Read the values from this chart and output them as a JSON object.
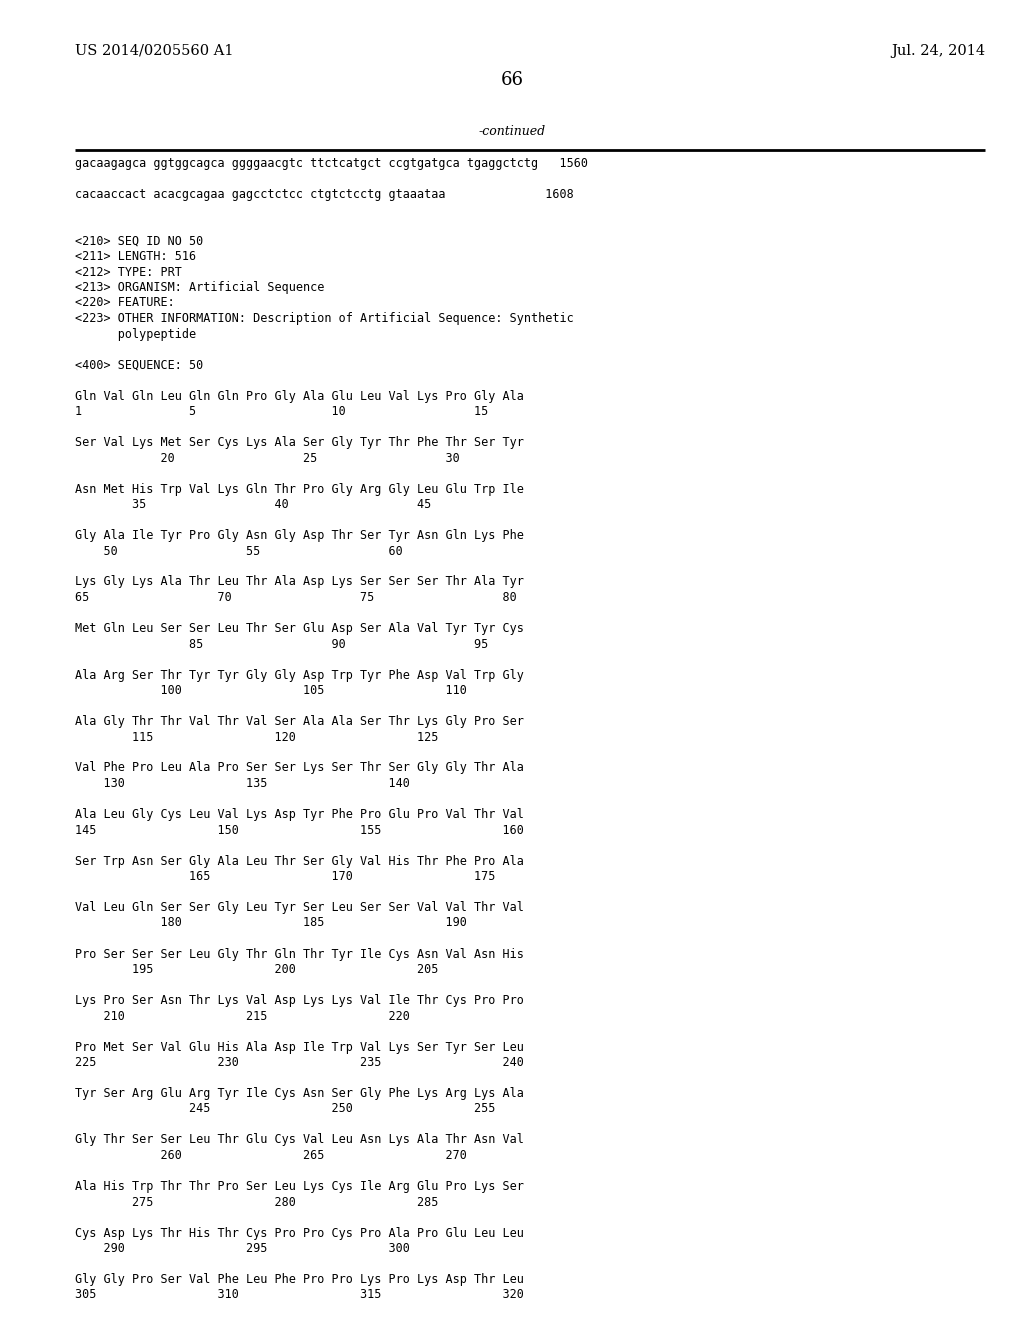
{
  "header_left": "US 2014/0205560 A1",
  "header_right": "Jul. 24, 2014",
  "page_number": "66",
  "continued_text": "-continued",
  "background_color": "#ffffff",
  "text_color": "#000000",
  "font_size": 8.5,
  "header_font_size": 10.5,
  "page_num_font_size": 13,
  "content_lines": [
    "gacaagagca ggtggcagca ggggaacgtc ttctcatgct ccgtgatgca tgaggctctg   1560",
    "",
    "cacaaccact acacgcagaa gagcctctcc ctgtctcctg gtaaataa              1608",
    "",
    "",
    "<210> SEQ ID NO 50",
    "<211> LENGTH: 516",
    "<212> TYPE: PRT",
    "<213> ORGANISM: Artificial Sequence",
    "<220> FEATURE:",
    "<223> OTHER INFORMATION: Description of Artificial Sequence: Synthetic",
    "      polypeptide",
    "",
    "<400> SEQUENCE: 50",
    "",
    "Gln Val Gln Leu Gln Gln Pro Gly Ala Glu Leu Val Lys Pro Gly Ala",
    "1               5                   10                  15",
    "",
    "Ser Val Lys Met Ser Cys Lys Ala Ser Gly Tyr Thr Phe Thr Ser Tyr",
    "            20                  25                  30",
    "",
    "Asn Met His Trp Val Lys Gln Thr Pro Gly Arg Gly Leu Glu Trp Ile",
    "        35                  40                  45",
    "",
    "Gly Ala Ile Tyr Pro Gly Asn Gly Asp Thr Ser Tyr Asn Gln Lys Phe",
    "    50                  55                  60",
    "",
    "Lys Gly Lys Ala Thr Leu Thr Ala Asp Lys Ser Ser Ser Thr Ala Tyr",
    "65                  70                  75                  80",
    "",
    "Met Gln Leu Ser Ser Leu Thr Ser Glu Asp Ser Ala Val Tyr Tyr Cys",
    "                85                  90                  95",
    "",
    "Ala Arg Ser Thr Tyr Tyr Gly Gly Asp Trp Tyr Phe Asp Val Trp Gly",
    "            100                 105                 110",
    "",
    "Ala Gly Thr Thr Val Thr Val Ser Ala Ala Ser Thr Lys Gly Pro Ser",
    "        115                 120                 125",
    "",
    "Val Phe Pro Leu Ala Pro Ser Ser Lys Ser Thr Ser Gly Gly Thr Ala",
    "    130                 135                 140",
    "",
    "Ala Leu Gly Cys Leu Val Lys Asp Tyr Phe Pro Glu Pro Val Thr Val",
    "145                 150                 155                 160",
    "",
    "Ser Trp Asn Ser Gly Ala Leu Thr Ser Gly Val His Thr Phe Pro Ala",
    "                165                 170                 175",
    "",
    "Val Leu Gln Ser Ser Gly Leu Tyr Ser Leu Ser Ser Val Val Thr Val",
    "            180                 185                 190",
    "",
    "Pro Ser Ser Ser Leu Gly Thr Gln Thr Tyr Ile Cys Asn Val Asn His",
    "        195                 200                 205",
    "",
    "Lys Pro Ser Asn Thr Lys Val Asp Lys Lys Val Ile Thr Cys Pro Pro",
    "    210                 215                 220",
    "",
    "Pro Met Ser Val Glu His Ala Asp Ile Trp Val Lys Ser Tyr Ser Leu",
    "225                 230                 235                 240",
    "",
    "Tyr Ser Arg Glu Arg Tyr Ile Cys Asn Ser Gly Phe Lys Arg Lys Ala",
    "                245                 250                 255",
    "",
    "Gly Thr Ser Ser Leu Thr Glu Cys Val Leu Asn Lys Ala Thr Asn Val",
    "            260                 265                 270",
    "",
    "Ala His Trp Thr Thr Pro Ser Leu Lys Cys Ile Arg Glu Pro Lys Ser",
    "        275                 280                 285",
    "",
    "Cys Asp Lys Thr His Thr Cys Pro Pro Cys Pro Ala Pro Glu Leu Leu",
    "    290                 295                 300",
    "",
    "Gly Gly Pro Ser Val Phe Leu Phe Pro Pro Lys Pro Lys Asp Thr Leu",
    "305                 310                 315                 320"
  ]
}
